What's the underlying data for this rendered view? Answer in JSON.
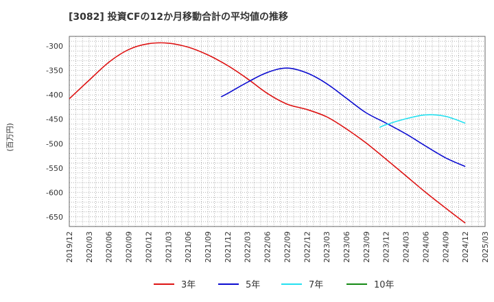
{
  "chart_data": {
    "type": "line",
    "title": "[3082]  投資CFの12か月移動合計の平均値の推移",
    "ylabel": "(百万円)",
    "xlabel": "",
    "ylim": [
      -670,
      -280
    ],
    "yticks": [
      -300,
      -350,
      -400,
      -450,
      -500,
      -550,
      -600,
      -650
    ],
    "xlim": [
      "2019-12",
      "2025-03"
    ],
    "xticks": [
      "2019/12",
      "2020/03",
      "2020/06",
      "2020/09",
      "2020/12",
      "2021/03",
      "2021/06",
      "2021/09",
      "2021/12",
      "2022/03",
      "2022/06",
      "2022/09",
      "2022/12",
      "2023/03",
      "2023/06",
      "2023/09",
      "2023/12",
      "2024/03",
      "2024/06",
      "2024/09",
      "2024/12",
      "2025/03"
    ],
    "grid": true,
    "legend_position": "bottom",
    "series": [
      {
        "name": "3年",
        "color": "#dd1111",
        "points": [
          [
            "2019-12",
            -408
          ],
          [
            "2020-03",
            -370
          ],
          [
            "2020-06",
            -333
          ],
          [
            "2020-09",
            -307
          ],
          [
            "2020-12",
            -295
          ],
          [
            "2021-03",
            -294
          ],
          [
            "2021-06",
            -302
          ],
          [
            "2021-09",
            -318
          ],
          [
            "2021-12",
            -340
          ],
          [
            "2022-03",
            -367
          ],
          [
            "2022-06",
            -397
          ],
          [
            "2022-09",
            -419
          ],
          [
            "2022-12",
            -430
          ],
          [
            "2023-03",
            -445
          ],
          [
            "2023-06",
            -470
          ],
          [
            "2023-09",
            -499
          ],
          [
            "2023-12",
            -532
          ],
          [
            "2024-03",
            -566
          ],
          [
            "2024-06",
            -600
          ],
          [
            "2024-09",
            -632
          ],
          [
            "2024-12",
            -663
          ]
        ]
      },
      {
        "name": "5年",
        "color": "#0a0ad0",
        "points": [
          [
            "2021-11",
            -404
          ],
          [
            "2021-12",
            -397
          ],
          [
            "2022-03",
            -374
          ],
          [
            "2022-06",
            -354
          ],
          [
            "2022-09",
            -345
          ],
          [
            "2022-12",
            -355
          ],
          [
            "2023-03",
            -377
          ],
          [
            "2023-06",
            -407
          ],
          [
            "2023-09",
            -437
          ],
          [
            "2023-12",
            -458
          ],
          [
            "2024-03",
            -480
          ],
          [
            "2024-06",
            -505
          ],
          [
            "2024-09",
            -529
          ],
          [
            "2024-12",
            -547
          ]
        ]
      },
      {
        "name": "7年",
        "color": "#22e0f0",
        "points": [
          [
            "2023-11",
            -467
          ],
          [
            "2023-12",
            -461
          ],
          [
            "2024-03",
            -449
          ],
          [
            "2024-06",
            -441
          ],
          [
            "2024-09",
            -444
          ],
          [
            "2024-12",
            -458
          ]
        ]
      },
      {
        "name": "10年",
        "color": "#118811",
        "points": []
      }
    ]
  }
}
